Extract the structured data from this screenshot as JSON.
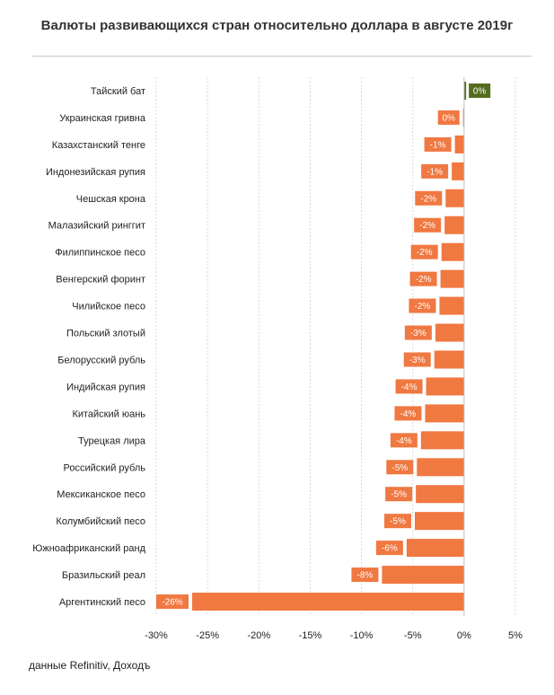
{
  "chart_data": {
    "type": "bar",
    "orientation": "horizontal",
    "title": "Валюты развивающихся стран относительно доллара в августе 2019г",
    "categories": [
      "Тайский бат",
      "Украинская гривна",
      "Казахстанский тенге",
      "Индонезийская рупия",
      "Чешская крона",
      "Малазийский ринггит",
      "Филиппинское песо",
      "Венгерский форинт",
      "Чилийское песо",
      "Польский злотый",
      "Белорусский рубль",
      "Индийская рупия",
      "Китайский юань",
      "Турецкая лира",
      "Российский рубль",
      "Мексиканское песо",
      "Колумбийский песо",
      "Южноафриканский ранд",
      "Бразильский реал",
      "Аргентинский песо"
    ],
    "values": [
      0.2,
      -0.1,
      -0.9,
      -1.2,
      -1.8,
      -1.9,
      -2.2,
      -2.3,
      -2.4,
      -2.8,
      -2.9,
      -3.7,
      -3.8,
      -4.2,
      -4.6,
      -4.7,
      -4.8,
      -5.6,
      -8.0,
      -26.5
    ],
    "data_labels": [
      "0%",
      "0%",
      "-1%",
      "-1%",
      "-2%",
      "-2%",
      "-2%",
      "-2%",
      "-2%",
      "-3%",
      "-3%",
      "-4%",
      "-4%",
      "-4%",
      "-5%",
      "-5%",
      "-5%",
      "-6%",
      "-8%",
      "-26%"
    ],
    "x_ticks": [
      -30,
      -25,
      -20,
      -15,
      -10,
      -5,
      0,
      5
    ],
    "x_tick_labels": [
      "-30%",
      "-25%",
      "-20%",
      "-15%",
      "-10%",
      "-5%",
      "0%",
      "5%"
    ],
    "xlim": [
      -30,
      5
    ],
    "grid": "vertical dashed",
    "legend": "none",
    "colors": {
      "negative": "#f07841",
      "positive": "#546c1e",
      "grid": "#d9d9d9",
      "axis": "#bfbfbf"
    }
  },
  "source": "данные Refinitiv, Доходъ"
}
